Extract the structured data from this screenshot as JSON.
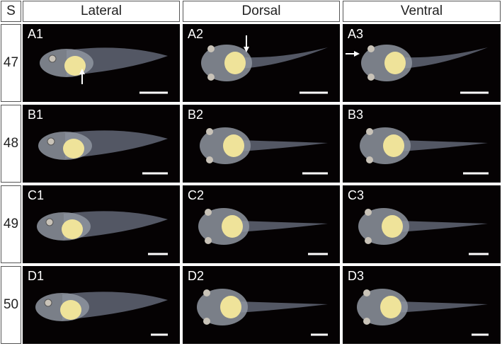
{
  "header": {
    "corner": "S",
    "columns": [
      "Lateral",
      "Dorsal",
      "Ventral"
    ]
  },
  "rows": [
    {
      "stage": "47",
      "panels": [
        "A1",
        "A2",
        "A3"
      ]
    },
    {
      "stage": "48",
      "panels": [
        "B1",
        "B2",
        "B3"
      ]
    },
    {
      "stage": "49",
      "panels": [
        "C1",
        "C2",
        "C3"
      ]
    },
    {
      "stage": "50",
      "panels": [
        "D1",
        "D2",
        "D3"
      ]
    }
  ]
}
